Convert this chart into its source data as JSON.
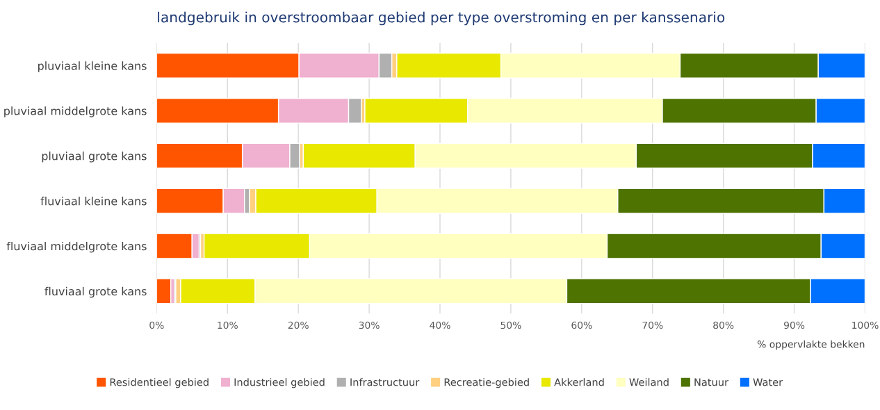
{
  "chart_data": {
    "type": "bar",
    "orientation": "horizontal",
    "stacked": true,
    "title": "landgebruik in overstroombaar gebied per type overstroming en per kanssenario",
    "xlabel": "% oppervlakte bekken",
    "categories": [
      "pluviaal kleine kans",
      "pluviaal middelgrote kans",
      "pluviaal grote kans",
      "fluviaal kleine kans",
      "fluviaal middelgrote kans",
      "fluviaal grote kans"
    ],
    "series": [
      {
        "name": "Residentieel gebied",
        "color": "#ff5500",
        "values": [
          20.1,
          17.2,
          12.1,
          9.4,
          5.0,
          2.0
        ]
      },
      {
        "name": "Industrieel gebied",
        "color": "#f0b0d0",
        "values": [
          11.3,
          9.9,
          6.7,
          3.0,
          1.0,
          0.5
        ]
      },
      {
        "name": "Infrastructuur",
        "color": "#b0b0b0",
        "values": [
          1.8,
          1.8,
          1.4,
          0.7,
          0.2,
          0.2
        ]
      },
      {
        "name": "Recreatie-gebied",
        "color": "#ffd080",
        "values": [
          0.7,
          0.5,
          0.5,
          0.9,
          0.5,
          0.7
        ]
      },
      {
        "name": "Akkerland",
        "color": "#e8e800",
        "values": [
          14.7,
          14.5,
          15.8,
          17.1,
          14.9,
          10.5
        ]
      },
      {
        "name": "Weiland",
        "color": "#ffffc0",
        "values": [
          25.3,
          27.5,
          31.2,
          34.0,
          42.0,
          44.0
        ]
      },
      {
        "name": "Natuur",
        "color": "#4e7300",
        "values": [
          19.5,
          21.7,
          24.9,
          29.1,
          30.2,
          34.4
        ]
      },
      {
        "name": "Water",
        "color": "#0070ff",
        "values": [
          6.6,
          6.9,
          7.4,
          5.8,
          6.2,
          7.7
        ]
      }
    ],
    "xlim": [
      0,
      100
    ],
    "xticks": [
      {
        "value": 0,
        "label": "0%"
      },
      {
        "value": 10,
        "label": "10%"
      },
      {
        "value": 20,
        "label": "20%"
      },
      {
        "value": 30,
        "label": "30%"
      },
      {
        "value": 40,
        "label": "40%"
      },
      {
        "value": 50,
        "label": "50%"
      },
      {
        "value": 60,
        "label": "60%"
      },
      {
        "value": 70,
        "label": "70%"
      },
      {
        "value": 80,
        "label": "80%"
      },
      {
        "value": 90,
        "label": "90%"
      },
      {
        "value": 100,
        "label": "100%"
      }
    ],
    "grid": "x",
    "legend": "bottom"
  }
}
